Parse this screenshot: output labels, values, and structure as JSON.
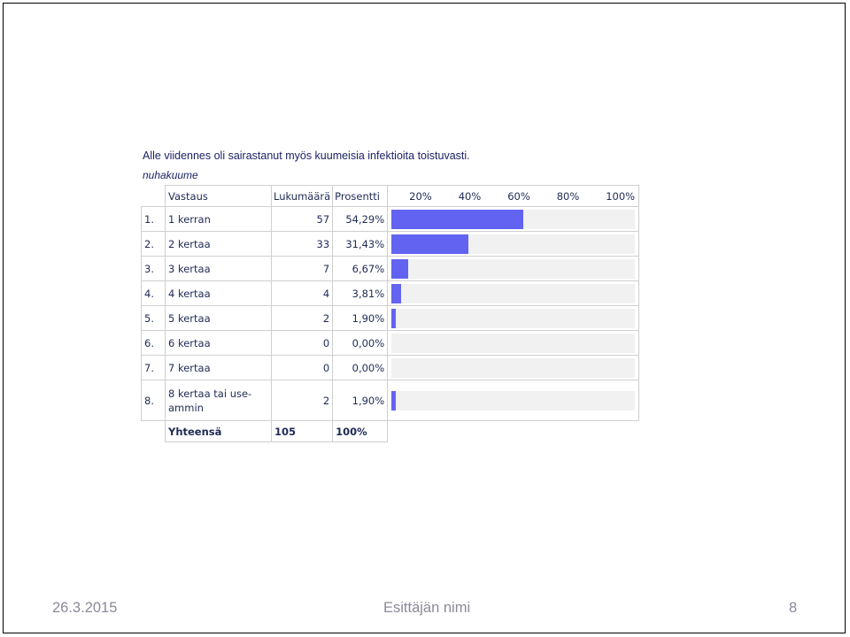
{
  "intro_text": "Alle viidennes oli sairastanut myös kuumeisia infektioita toistuvasti.",
  "question": "nuhakuume",
  "table": {
    "headers": {
      "answer": "Vastaus",
      "count": "Lukumäärä",
      "percent": "Prosentti"
    },
    "scale": [
      "20%",
      "40%",
      "60%",
      "80%",
      "100%"
    ],
    "rows": [
      {
        "num": "1.",
        "label": "1 kerran",
        "count": "57",
        "percent": "54,29%"
      },
      {
        "num": "2.",
        "label": "2 kertaa",
        "count": "33",
        "percent": "31,43%"
      },
      {
        "num": "3.",
        "label": "3 kertaa",
        "count": "7",
        "percent": "6,67%"
      },
      {
        "num": "4.",
        "label": "4 kertaa",
        "count": "4",
        "percent": "3,81%"
      },
      {
        "num": "5.",
        "label": "5 kertaa",
        "count": "2",
        "percent": "1,90%"
      },
      {
        "num": "6.",
        "label": "6 kertaa",
        "count": "0",
        "percent": "0,00%"
      },
      {
        "num": "7.",
        "label": "7 kertaa",
        "count": "0",
        "percent": "0,00%"
      },
      {
        "num": "8.",
        "label": "8 kertaa tai use-ammin",
        "count": "2",
        "percent": "1,90%"
      }
    ],
    "total": {
      "label": "Yhteensä",
      "count": "105",
      "percent": "100%"
    }
  },
  "chart_data": {
    "type": "bar",
    "orientation": "horizontal",
    "categories": [
      "1 kerran",
      "2 kertaa",
      "3 kertaa",
      "4 kertaa",
      "5 kertaa",
      "6 kertaa",
      "7 kertaa",
      "8 kertaa tai use-ammin"
    ],
    "values": [
      54.29,
      31.43,
      6.67,
      3.81,
      1.9,
      0.0,
      0.0,
      1.9
    ],
    "counts": [
      57,
      33,
      7,
      4,
      2,
      0,
      0,
      2
    ],
    "xlim": [
      0,
      100
    ],
    "xticks": [
      "20%",
      "40%",
      "60%",
      "80%",
      "100%"
    ],
    "bar_color": "#6363f2",
    "track_color": "#f1f1f1"
  },
  "footer": {
    "date": "26.3.2015",
    "presenter": "Esittäjän nimi",
    "page": "8"
  }
}
